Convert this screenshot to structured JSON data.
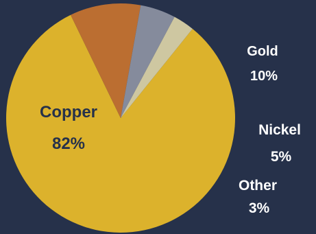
{
  "chart_data": {
    "type": "pie",
    "title": "",
    "slices": [
      {
        "label": "Copper",
        "value": 82,
        "display": "82%",
        "color": "#dcb22c"
      },
      {
        "label": "Gold",
        "value": 10,
        "display": "10%",
        "color": "#bb6e31"
      },
      {
        "label": "Nickel",
        "value": 5,
        "display": "5%",
        "color": "#858b9c"
      },
      {
        "label": "Other",
        "value": 3,
        "display": "3%",
        "color": "#cec7a1"
      }
    ],
    "label_color_inside": "#26314a",
    "label_color_outside": "#ffffff",
    "background": "#26314a"
  }
}
